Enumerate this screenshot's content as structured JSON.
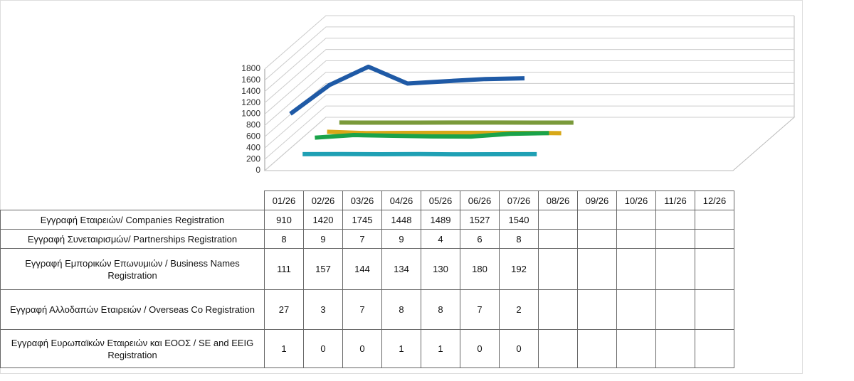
{
  "chart_data": {
    "type": "line",
    "categories": [
      "01/26",
      "02/26",
      "03/26",
      "04/26",
      "05/26",
      "06/26",
      "07/26",
      "08/26",
      "09/26",
      "10/26",
      "11/26",
      "12/26"
    ],
    "series": [
      {
        "name": "Εγγραφή Εταιρειών/ Companies Registration",
        "color": "#1f5aa6",
        "values": [
          910,
          1420,
          1745,
          1448,
          1489,
          1527,
          1540,
          null,
          null,
          null,
          null,
          null
        ]
      },
      {
        "name": "Εγγραφή Συνεταιρισμών/ Partnerships Registration",
        "color": "#1fa0b4",
        "values": [
          8,
          9,
          7,
          9,
          4,
          6,
          8,
          null,
          null,
          null,
          null,
          null
        ]
      },
      {
        "name": "Εγγραφή Εμπορικών Επωνυμιών / Business Names Registration",
        "color": "#1aa34a",
        "values": [
          111,
          157,
          144,
          134,
          130,
          180,
          192,
          null,
          null,
          null,
          null,
          null
        ]
      },
      {
        "name": "Εγγραφή Αλλοδαπών Εταιρειών / Overseas Co Registration",
        "color": "#d8a818",
        "values": [
          27,
          3,
          7,
          8,
          8,
          7,
          2,
          null,
          null,
          null,
          null,
          null
        ]
      },
      {
        "name": "Εγγραφή Ευρωπαϊκών Εταιρειών και ΕΟΟΣ / SE and EEIG Registration",
        "color": "#7a9a3a",
        "values": [
          1,
          0,
          0,
          1,
          1,
          0,
          0,
          null,
          null,
          null,
          null,
          null
        ]
      }
    ],
    "ylim": [
      0,
      1800
    ],
    "yticks": [
      0,
      200,
      400,
      600,
      800,
      1000,
      1200,
      1400,
      1600,
      1800
    ],
    "grid": true
  }
}
